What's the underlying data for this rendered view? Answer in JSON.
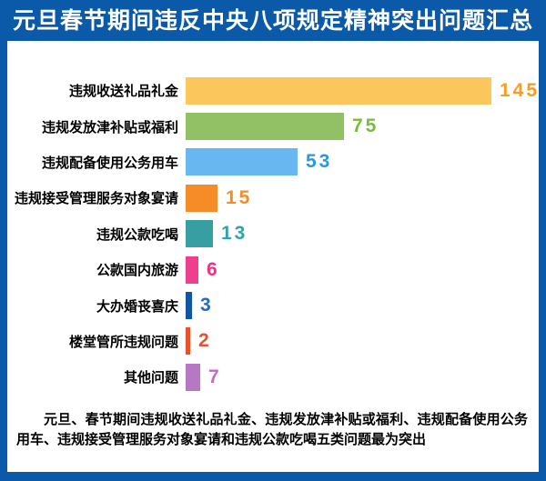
{
  "title": "元旦春节期间违反中央八项规定精神突出问题汇总",
  "chart_data": {
    "type": "bar",
    "orientation": "horizontal",
    "title": "元旦春节期间违反中央八项规定精神突出问题汇总",
    "categories": [
      "违规收送礼品礼金",
      "违规发放津补贴或福利",
      "违规配备使用公务用车",
      "违规接受管理服务对象宴请",
      "违规公款吃喝",
      "公款国内旅游",
      "大办婚丧喜庆",
      "楼堂管所违规问题",
      "其他问题"
    ],
    "values": [
      145,
      75,
      53,
      15,
      13,
      6,
      3,
      2,
      7
    ],
    "bar_colors": [
      "#FBC75C",
      "#92C065",
      "#68B7F0",
      "#F68C27",
      "#379FA1",
      "#EE3E8E",
      "#1255A8",
      "#EA5029",
      "#B678C2"
    ],
    "value_label_colors": [
      "#F59E23",
      "#7CB93F",
      "#2998E0",
      "#F68C27",
      "#2FA5A8",
      "#F03182",
      "#1E6BC8",
      "#EA5029",
      "#BE6BC8"
    ],
    "xlim": [
      0,
      150
    ],
    "grid": false,
    "legend": false,
    "value_labels_shown": true
  },
  "footer": "元旦、春节期间违规收送礼品礼金、违规发放津补贴或福利、违规配备使用公务用车、违规接受管理服务对象宴请和违规公款吃喝五类问题最为突出",
  "colors": {
    "background": "#0A5AA9",
    "panel": "#FFFFFF",
    "title_text": "#FFFFFF",
    "label_text": "#000000"
  }
}
